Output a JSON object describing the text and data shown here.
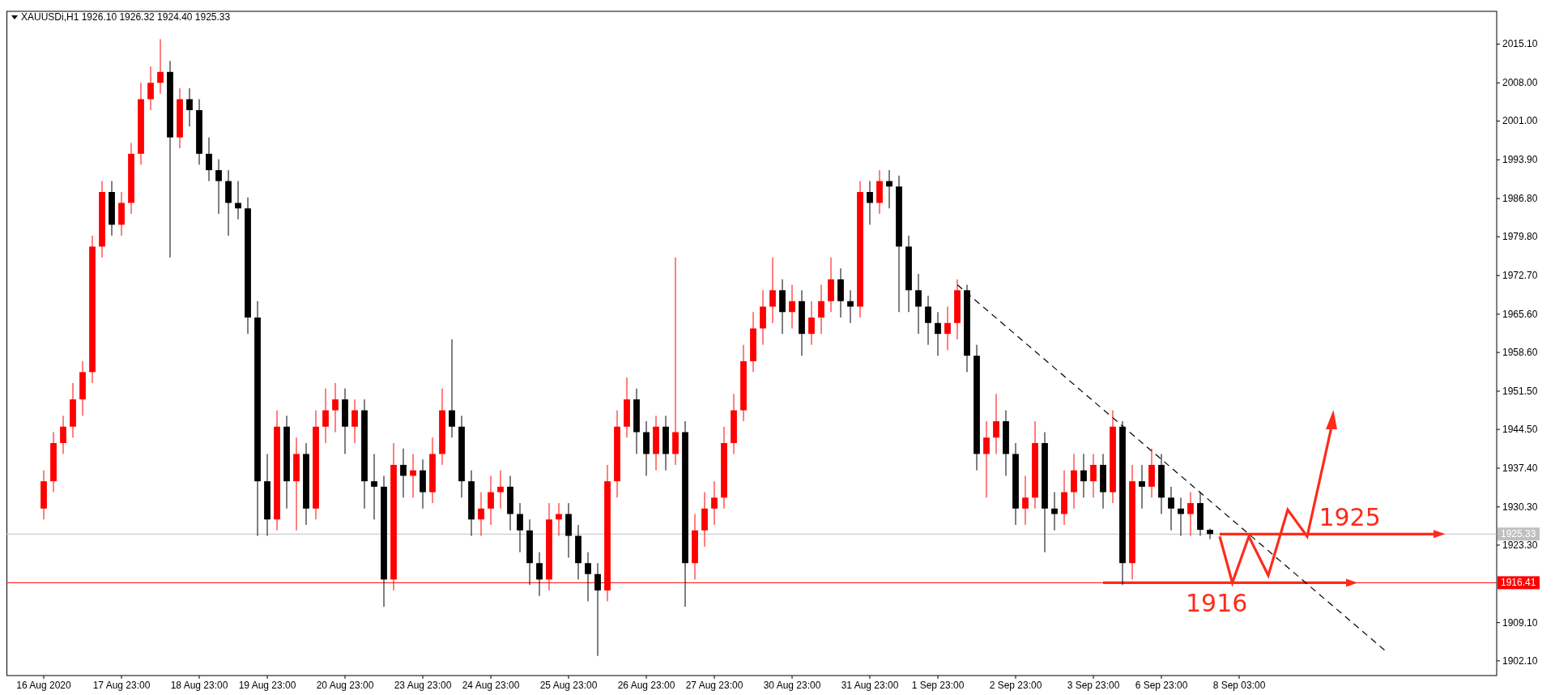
{
  "chart_data": {
    "type": "candlestick",
    "title": "XAUUSDi,H1  1926.10 1926.32 1924.40 1925.33",
    "categories": [
      "16 Aug 2020",
      null,
      null,
      null,
      null,
      null,
      null,
      null,
      "17 Aug 23:00",
      null,
      null,
      null,
      null,
      null,
      null,
      null,
      "18 Aug 23:00",
      null,
      null,
      null,
      null,
      null,
      null,
      "19 Aug 23:00",
      null,
      null,
      null,
      null,
      null,
      null,
      null,
      "20 Aug 23:00",
      null,
      null,
      null,
      null,
      null,
      null,
      null,
      "23 Aug 23:00",
      null,
      null,
      null,
      null,
      null,
      null,
      "24 Aug 23:00",
      null,
      null,
      null,
      null,
      null,
      null,
      null,
      "25 Aug 23:00",
      null,
      null,
      null,
      null,
      null,
      null,
      null,
      "26 Aug 23:00",
      null,
      null,
      null,
      null,
      null,
      null,
      "27 Aug 23:00",
      null,
      null,
      null,
      null,
      null,
      null,
      null,
      "30 Aug 23:00",
      null,
      null,
      null,
      null,
      null,
      null,
      null,
      "31 Aug 23:00",
      null,
      null,
      null,
      null,
      null,
      null,
      "1 Sep 23:00",
      null,
      null,
      null,
      null,
      null,
      null,
      null,
      "2 Sep 23:00",
      null,
      null,
      null,
      null,
      null,
      null,
      null,
      "3 Sep 23:00",
      null,
      null,
      null,
      null,
      null,
      null,
      "6 Sep 23:00",
      null,
      null,
      null,
      null,
      null,
      null,
      null,
      "8 Sep 03:00",
      null,
      null,
      null,
      null,
      null,
      null,
      null,
      null,
      null,
      null,
      null,
      null,
      null,
      null,
      null,
      null,
      null,
      null,
      null,
      null,
      null,
      null,
      null,
      null,
      null,
      null
    ],
    "ohlc": [
      [
        1930,
        1937,
        1928,
        1935
      ],
      [
        1935,
        1944,
        1933,
        1942
      ],
      [
        1942,
        1947,
        1940,
        1945
      ],
      [
        1945,
        1953,
        1943,
        1950
      ],
      [
        1950,
        1957,
        1947,
        1955
      ],
      [
        1955,
        1980,
        1953,
        1978
      ],
      [
        1978,
        1990,
        1976,
        1988
      ],
      [
        1988,
        1990,
        1980,
        1982
      ],
      [
        1982,
        1988,
        1980,
        1986
      ],
      [
        1986,
        1997,
        1984,
        1995
      ],
      [
        1995,
        2008,
        1993,
        2005
      ],
      [
        2005,
        2011,
        2003,
        2008
      ],
      [
        2008,
        2016,
        2006,
        2010
      ],
      [
        2010,
        2012,
        1976,
        1998
      ],
      [
        1998,
        2007,
        1996,
        2005
      ],
      [
        2005,
        2007,
        2000,
        2003
      ],
      [
        2003,
        2005,
        1993,
        1995
      ],
      [
        1995,
        1998,
        1990,
        1992
      ],
      [
        1992,
        1994,
        1984,
        1990
      ],
      [
        1990,
        1992,
        1980,
        1986
      ],
      [
        1986,
        1990,
        1983,
        1985
      ],
      [
        1985,
        1987,
        1962,
        1965
      ],
      [
        1965,
        1968,
        1925,
        1935
      ],
      [
        1935,
        1940,
        1925,
        1928
      ],
      [
        1928,
        1948,
        1926,
        1945
      ],
      [
        1945,
        1947,
        1930,
        1935
      ],
      [
        1935,
        1943,
        1926,
        1940
      ],
      [
        1940,
        1942,
        1927,
        1930
      ],
      [
        1930,
        1948,
        1928,
        1945
      ],
      [
        1945,
        1952,
        1942,
        1948
      ],
      [
        1948,
        1953,
        1944,
        1950
      ],
      [
        1950,
        1952,
        1940,
        1945
      ],
      [
        1945,
        1950,
        1942,
        1948
      ],
      [
        1948,
        1950,
        1930,
        1935
      ],
      [
        1935,
        1940,
        1928,
        1934
      ],
      [
        1934,
        1936,
        1912,
        1917
      ],
      [
        1917,
        1942,
        1915,
        1938
      ],
      [
        1938,
        1941,
        1932,
        1936
      ],
      [
        1936,
        1940,
        1932,
        1937
      ],
      [
        1937,
        1939,
        1930,
        1933
      ],
      [
        1933,
        1943,
        1931,
        1940
      ],
      [
        1940,
        1952,
        1938,
        1948
      ],
      [
        1948,
        1961,
        1943,
        1945
      ],
      [
        1945,
        1947,
        1932,
        1935
      ],
      [
        1935,
        1937,
        1925,
        1928
      ],
      [
        1928,
        1933,
        1925,
        1930
      ],
      [
        1930,
        1936,
        1927,
        1933
      ],
      [
        1933,
        1937,
        1930,
        1934
      ],
      [
        1934,
        1936,
        1926,
        1929
      ],
      [
        1929,
        1931,
        1922,
        1926
      ],
      [
        1926,
        1928,
        1916,
        1920
      ],
      [
        1920,
        1922,
        1914,
        1917
      ],
      [
        1917,
        1931,
        1915,
        1928
      ],
      [
        1928,
        1931,
        1925,
        1929
      ],
      [
        1929,
        1931,
        1921,
        1925
      ],
      [
        1925,
        1927,
        1917,
        1920
      ],
      [
        1920,
        1922,
        1913,
        1918
      ],
      [
        1918,
        1920,
        1903,
        1915
      ],
      [
        1915,
        1938,
        1913,
        1935
      ],
      [
        1935,
        1948,
        1932,
        1945
      ],
      [
        1945,
        1954,
        1943,
        1950
      ],
      [
        1950,
        1952,
        1940,
        1944
      ],
      [
        1944,
        1946,
        1936,
        1940
      ],
      [
        1940,
        1947,
        1937,
        1945
      ],
      [
        1945,
        1947,
        1937,
        1940
      ],
      [
        1940,
        1976,
        1938,
        1944
      ],
      [
        1944,
        1946,
        1912,
        1920
      ],
      [
        1920,
        1929,
        1917,
        1926
      ],
      [
        1926,
        1933,
        1923,
        1930
      ],
      [
        1930,
        1935,
        1927,
        1932
      ],
      [
        1932,
        1945,
        1930,
        1942
      ],
      [
        1942,
        1951,
        1940,
        1948
      ],
      [
        1948,
        1960,
        1946,
        1957
      ],
      [
        1957,
        1966,
        1955,
        1963
      ],
      [
        1963,
        1970,
        1960,
        1967
      ],
      [
        1967,
        1976,
        1964,
        1970
      ],
      [
        1970,
        1972,
        1962,
        1966
      ],
      [
        1966,
        1971,
        1963,
        1968
      ],
      [
        1968,
        1970,
        1958,
        1962
      ],
      [
        1962,
        1968,
        1960,
        1965
      ],
      [
        1965,
        1971,
        1962,
        1968
      ],
      [
        1968,
        1976,
        1966,
        1972
      ],
      [
        1972,
        1974,
        1965,
        1968
      ],
      [
        1968,
        1970,
        1964,
        1967
      ],
      [
        1967,
        1990,
        1965,
        1988
      ],
      [
        1988,
        1990,
        1982,
        1986
      ],
      [
        1986,
        1992,
        1984,
        1990
      ],
      [
        1990,
        1992,
        1985,
        1989
      ],
      [
        1989,
        1991,
        1966,
        1978
      ],
      [
        1978,
        1980,
        1966,
        1970
      ],
      [
        1970,
        1973,
        1962,
        1967
      ],
      [
        1967,
        1969,
        1960,
        1964
      ],
      [
        1964,
        1966,
        1958,
        1962
      ],
      [
        1962,
        1967,
        1959,
        1964
      ],
      [
        1964,
        1972,
        1961,
        1970
      ],
      [
        1970,
        1971,
        1955,
        1958
      ],
      [
        1958,
        1960,
        1937,
        1940
      ],
      [
        1940,
        1946,
        1932,
        1943
      ],
      [
        1943,
        1951,
        1940,
        1946
      ],
      [
        1946,
        1948,
        1936,
        1940
      ],
      [
        1940,
        1942,
        1927,
        1930
      ],
      [
        1930,
        1936,
        1927,
        1932
      ],
      [
        1932,
        1946,
        1930,
        1942
      ],
      [
        1942,
        1944,
        1922,
        1930
      ],
      [
        1930,
        1933,
        1926,
        1929
      ],
      [
        1929,
        1937,
        1927,
        1933
      ],
      [
        1933,
        1940,
        1930,
        1937
      ],
      [
        1937,
        1940,
        1932,
        1935
      ],
      [
        1935,
        1940,
        1932,
        1938
      ],
      [
        1938,
        1940,
        1930,
        1933
      ],
      [
        1933,
        1948,
        1931,
        1945
      ],
      [
        1945,
        1946,
        1916,
        1920
      ],
      [
        1920,
        1938,
        1917,
        1935
      ],
      [
        1935,
        1938,
        1930,
        1934
      ],
      [
        1934,
        1941,
        1932,
        1938
      ],
      [
        1938,
        1940,
        1929,
        1932
      ],
      [
        1932,
        1934,
        1926,
        1930
      ],
      [
        1930,
        1932,
        1925,
        1929
      ],
      [
        1929,
        1933,
        1925,
        1931
      ],
      [
        1931,
        1933,
        1925,
        1926.1
      ],
      [
        1926.1,
        1926.32,
        1924.4,
        1925.33
      ],
      null,
      null,
      null,
      null,
      null,
      null,
      null,
      null,
      null,
      null,
      null,
      null,
      null,
      null,
      null,
      null,
      null,
      null,
      null,
      null,
      null,
      null,
      null,
      null,
      null,
      null,
      null,
      null,
      null
    ],
    "colors": [
      "#ff0000",
      "#ff0000",
      "#ff0000",
      "#ff0000",
      "#ff0000",
      "#ff0000",
      "#ff0000",
      "#000000",
      "#ff0000",
      "#ff0000",
      "#ff0000",
      "#ff0000",
      "#ff0000",
      "#000000",
      "#ff0000",
      "#000000",
      "#000000",
      "#000000",
      "#000000",
      "#000000",
      "#000000",
      "#000000",
      "#000000",
      "#000000",
      "#ff0000",
      "#000000",
      "#ff0000",
      "#000000",
      "#ff0000",
      "#ff0000",
      "#ff0000",
      "#000000",
      "#ff0000",
      "#000000",
      "#000000",
      "#000000",
      "#ff0000",
      "#000000",
      "#ff0000",
      "#000000",
      "#ff0000",
      "#ff0000",
      "#000000",
      "#000000",
      "#000000",
      "#ff0000",
      "#ff0000",
      "#ff0000",
      "#000000",
      "#000000",
      "#000000",
      "#000000",
      "#ff0000",
      "#ff0000",
      "#000000",
      "#000000",
      "#000000",
      "#000000",
      "#ff0000",
      "#ff0000",
      "#ff0000",
      "#000000",
      "#000000",
      "#ff0000",
      "#000000",
      "#ff0000",
      "#000000",
      "#ff0000",
      "#ff0000",
      "#ff0000",
      "#ff0000",
      "#ff0000",
      "#ff0000",
      "#ff0000",
      "#ff0000",
      "#ff0000",
      "#000000",
      "#ff0000",
      "#000000",
      "#ff0000",
      "#ff0000",
      "#ff0000",
      "#000000",
      "#000000",
      "#ff0000",
      "#000000",
      "#ff0000",
      "#000000",
      "#000000",
      "#000000",
      "#000000",
      "#000000",
      "#000000",
      "#ff0000",
      "#ff0000",
      "#000000",
      "#000000",
      "#ff0000",
      "#ff0000",
      "#000000",
      "#000000",
      "#ff0000",
      "#ff0000",
      "#000000",
      "#000000",
      "#ff0000",
      "#ff0000",
      "#000000",
      "#ff0000",
      "#000000",
      "#ff0000",
      "#000000",
      "#ff0000",
      "#000000",
      "#ff0000",
      "#000000",
      "#000000",
      "#000000",
      "#ff0000",
      "#000000",
      "#000000",
      null,
      null,
      null,
      null,
      null,
      null,
      null,
      null,
      null,
      null,
      null,
      null,
      null,
      null,
      null,
      null,
      null,
      null,
      null,
      null,
      null,
      null,
      null,
      null,
      null,
      null,
      null,
      null,
      null
    ],
    "series": [
      {
        "type": "line",
        "color": "#000000",
        "line_style": "dashed",
        "values": [
          null,
          null,
          null,
          null,
          null,
          null,
          null,
          null,
          null,
          null,
          null,
          null,
          null,
          null,
          null,
          null,
          null,
          null,
          null,
          null,
          null,
          null,
          null,
          null,
          null,
          null,
          null,
          null,
          null,
          null,
          null,
          null,
          null,
          null,
          null,
          null,
          null,
          null,
          null,
          null,
          null,
          null,
          null,
          null,
          null,
          null,
          null,
          null,
          null,
          null,
          null,
          null,
          null,
          null,
          null,
          null,
          null,
          null,
          null,
          null,
          null,
          null,
          null,
          null,
          null,
          null,
          null,
          null,
          null,
          null,
          null,
          null,
          null,
          null,
          null,
          null,
          null,
          null,
          null,
          null,
          null,
          null,
          null,
          null,
          null,
          null,
          null,
          null,
          null,
          null,
          null,
          null,
          null,
          null,
          1971,
          null,
          null,
          null,
          null,
          null,
          null,
          null,
          null,
          null,
          null,
          null,
          null,
          null,
          null,
          null,
          null,
          null,
          null,
          null,
          null,
          null,
          null,
          null,
          null,
          null,
          null,
          null,
          null,
          null,
          null,
          null,
          null,
          null,
          null,
          null,
          null,
          null,
          null,
          null,
          null,
          null,
          null,
          null,
          1904,
          null,
          null,
          null,
          null,
          null,
          null,
          null,
          null,
          null,
          null,
          null
        ]
      }
    ],
    "ylim": [
      1899.4,
      2021.1
    ],
    "yticks": [
      {
        "value": 1902.1,
        "label": "1902.10"
      },
      {
        "value": 1909.1,
        "label": "1909.10"
      },
      {
        "value": 1923.3,
        "label": "1923.30"
      },
      {
        "value": 1930.3,
        "label": "1930.30"
      },
      {
        "value": 1937.4,
        "label": "1937.40"
      },
      {
        "value": 1944.5,
        "label": "1944.50"
      },
      {
        "value": 1951.5,
        "label": "1951.50"
      },
      {
        "value": 1958.6,
        "label": "1958.60"
      },
      {
        "value": 1965.6,
        "label": "1965.60"
      },
      {
        "value": 1972.7,
        "label": "1972.70"
      },
      {
        "value": 1979.8,
        "label": "1979.80"
      },
      {
        "value": 1986.8,
        "label": "1986.80"
      },
      {
        "value": 1993.9,
        "label": "1993.90"
      },
      {
        "value": 2001,
        "label": "2001.00"
      },
      {
        "value": 2008,
        "label": "2008.00"
      },
      {
        "value": 2015.1,
        "label": "2015.10"
      }
    ],
    "ref_lines": [
      {
        "axis": "y",
        "value": 1916.41,
        "label": "1916.41",
        "color": "#ff0000"
      },
      {
        "axis": "y",
        "value": 1925.33,
        "label": "1925.33",
        "color": "#c0c0c0"
      }
    ],
    "annotations": [
      "1925",
      "1916"
    ],
    "grid": false
  }
}
